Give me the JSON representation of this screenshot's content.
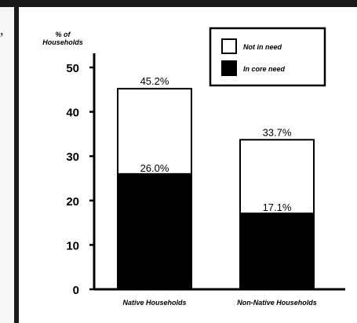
{
  "page": {
    "left_bleed_text": ","
  },
  "chart_data": {
    "type": "bar",
    "stacked": true,
    "ylabel": "% of Households",
    "ylim": [
      0,
      50
    ],
    "yticks": [
      0,
      10,
      20,
      30,
      40,
      50
    ],
    "grid": false,
    "legend_position": "top-right",
    "categories": [
      "Native Households",
      "Non-Native Households"
    ],
    "series": [
      {
        "name": "In core need",
        "color": "#000000",
        "values": [
          26.0,
          17.1
        ]
      },
      {
        "name": "Not in need",
        "color": "#ffffff",
        "values": [
          19.2,
          16.6
        ]
      }
    ],
    "total_labels": [
      "45.2%",
      "33.7%"
    ],
    "core_labels": [
      "26.0%",
      "17.1%"
    ]
  }
}
